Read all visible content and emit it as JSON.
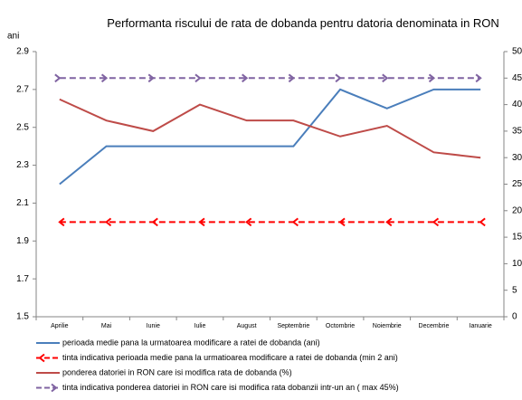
{
  "chart_data": {
    "type": "line",
    "title": "Performanta riscului de rata de dobanda pentru datoria denominata in RON",
    "ylabel": "ani",
    "categories": [
      "Aprilie",
      "Mai",
      "Iunie",
      "Iulie",
      "August",
      "Septembrie",
      "Octombrie",
      "Noiembrie",
      "Decembrie",
      "Ianuarie"
    ],
    "ylim": [
      1.5,
      2.9
    ],
    "yticks": [
      1.5,
      1.7,
      1.9,
      2.1,
      2.3,
      2.5,
      2.7,
      2.9
    ],
    "y2lim": [
      0,
      50
    ],
    "y2ticks": [
      0,
      5,
      10,
      15,
      20,
      25,
      30,
      35,
      40,
      45,
      50
    ],
    "series": [
      {
        "name": "perioada medie pana la urmatoarea modificare a ratei de dobanda (ani)",
        "color": "#4a7ebb",
        "line_style": "solid",
        "values": [
          2.2,
          2.4,
          2.4,
          2.4,
          2.4,
          2.4,
          2.7,
          2.6,
          2.7,
          2.7
        ]
      },
      {
        "name": "tinta indicativa perioada medie pana la urmatioarea modificare a ratei de dobanda (min 2 ani)",
        "color": "#ff0000",
        "line_style": "dashed",
        "marker": "arrow-left",
        "values": [
          2.0,
          2.0,
          2.0,
          2.0,
          2.0,
          2.0,
          2.0,
          2.0,
          2.0,
          2.0
        ]
      },
      {
        "name": "ponderea datoriei in RON care isi modifica rata de dobanda  (%)",
        "color": "#be4b48",
        "line_style": "solid",
        "axis": "y2",
        "values": [
          41,
          37,
          35,
          40,
          37,
          37,
          34,
          36,
          31,
          30
        ]
      },
      {
        "name": "tinta indicativa ponderea datoriei in RON care isi modifica rata dobanzii intr-un an ( max 45%)",
        "color": "#8064a2",
        "line_style": "dashed",
        "marker": "arrow-right",
        "axis": "y2",
        "values": [
          45,
          45,
          45,
          45,
          45,
          45,
          45,
          45,
          45,
          45
        ]
      }
    ]
  }
}
